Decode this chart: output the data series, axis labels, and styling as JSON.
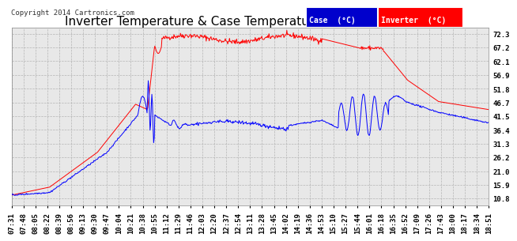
{
  "title": "Inverter Temperature & Case Temperature Wed Mar 12 19:00",
  "copyright": "Copyright 2014 Cartronics.com",
  "yticks": [
    10.8,
    15.9,
    21.0,
    26.2,
    31.3,
    36.4,
    41.5,
    46.7,
    51.8,
    56.9,
    62.1,
    67.2,
    72.3
  ],
  "ylim": [
    8.0,
    74.5
  ],
  "xtick_labels": [
    "07:31",
    "07:48",
    "08:05",
    "08:22",
    "08:39",
    "08:56",
    "09:13",
    "09:30",
    "09:47",
    "10:04",
    "10:21",
    "10:38",
    "10:55",
    "11:12",
    "11:29",
    "11:46",
    "12:03",
    "12:20",
    "12:37",
    "12:54",
    "13:11",
    "13:28",
    "13:45",
    "14:02",
    "14:19",
    "14:36",
    "14:53",
    "15:10",
    "15:27",
    "15:44",
    "16:01",
    "16:18",
    "16:35",
    "16:52",
    "17:09",
    "17:26",
    "17:43",
    "18:00",
    "18:17",
    "18:34",
    "18:51"
  ],
  "background_color": "#ffffff",
  "plot_bg_color": "#e8e8e8",
  "grid_color": "#b0b0b0",
  "case_color": "#0000ff",
  "inverter_color": "#ff0000",
  "legend_case_bg": "#0000cc",
  "legend_inv_bg": "#cc0000",
  "title_fontsize": 11,
  "tick_fontsize": 6.5,
  "copyright_fontsize": 6.5
}
